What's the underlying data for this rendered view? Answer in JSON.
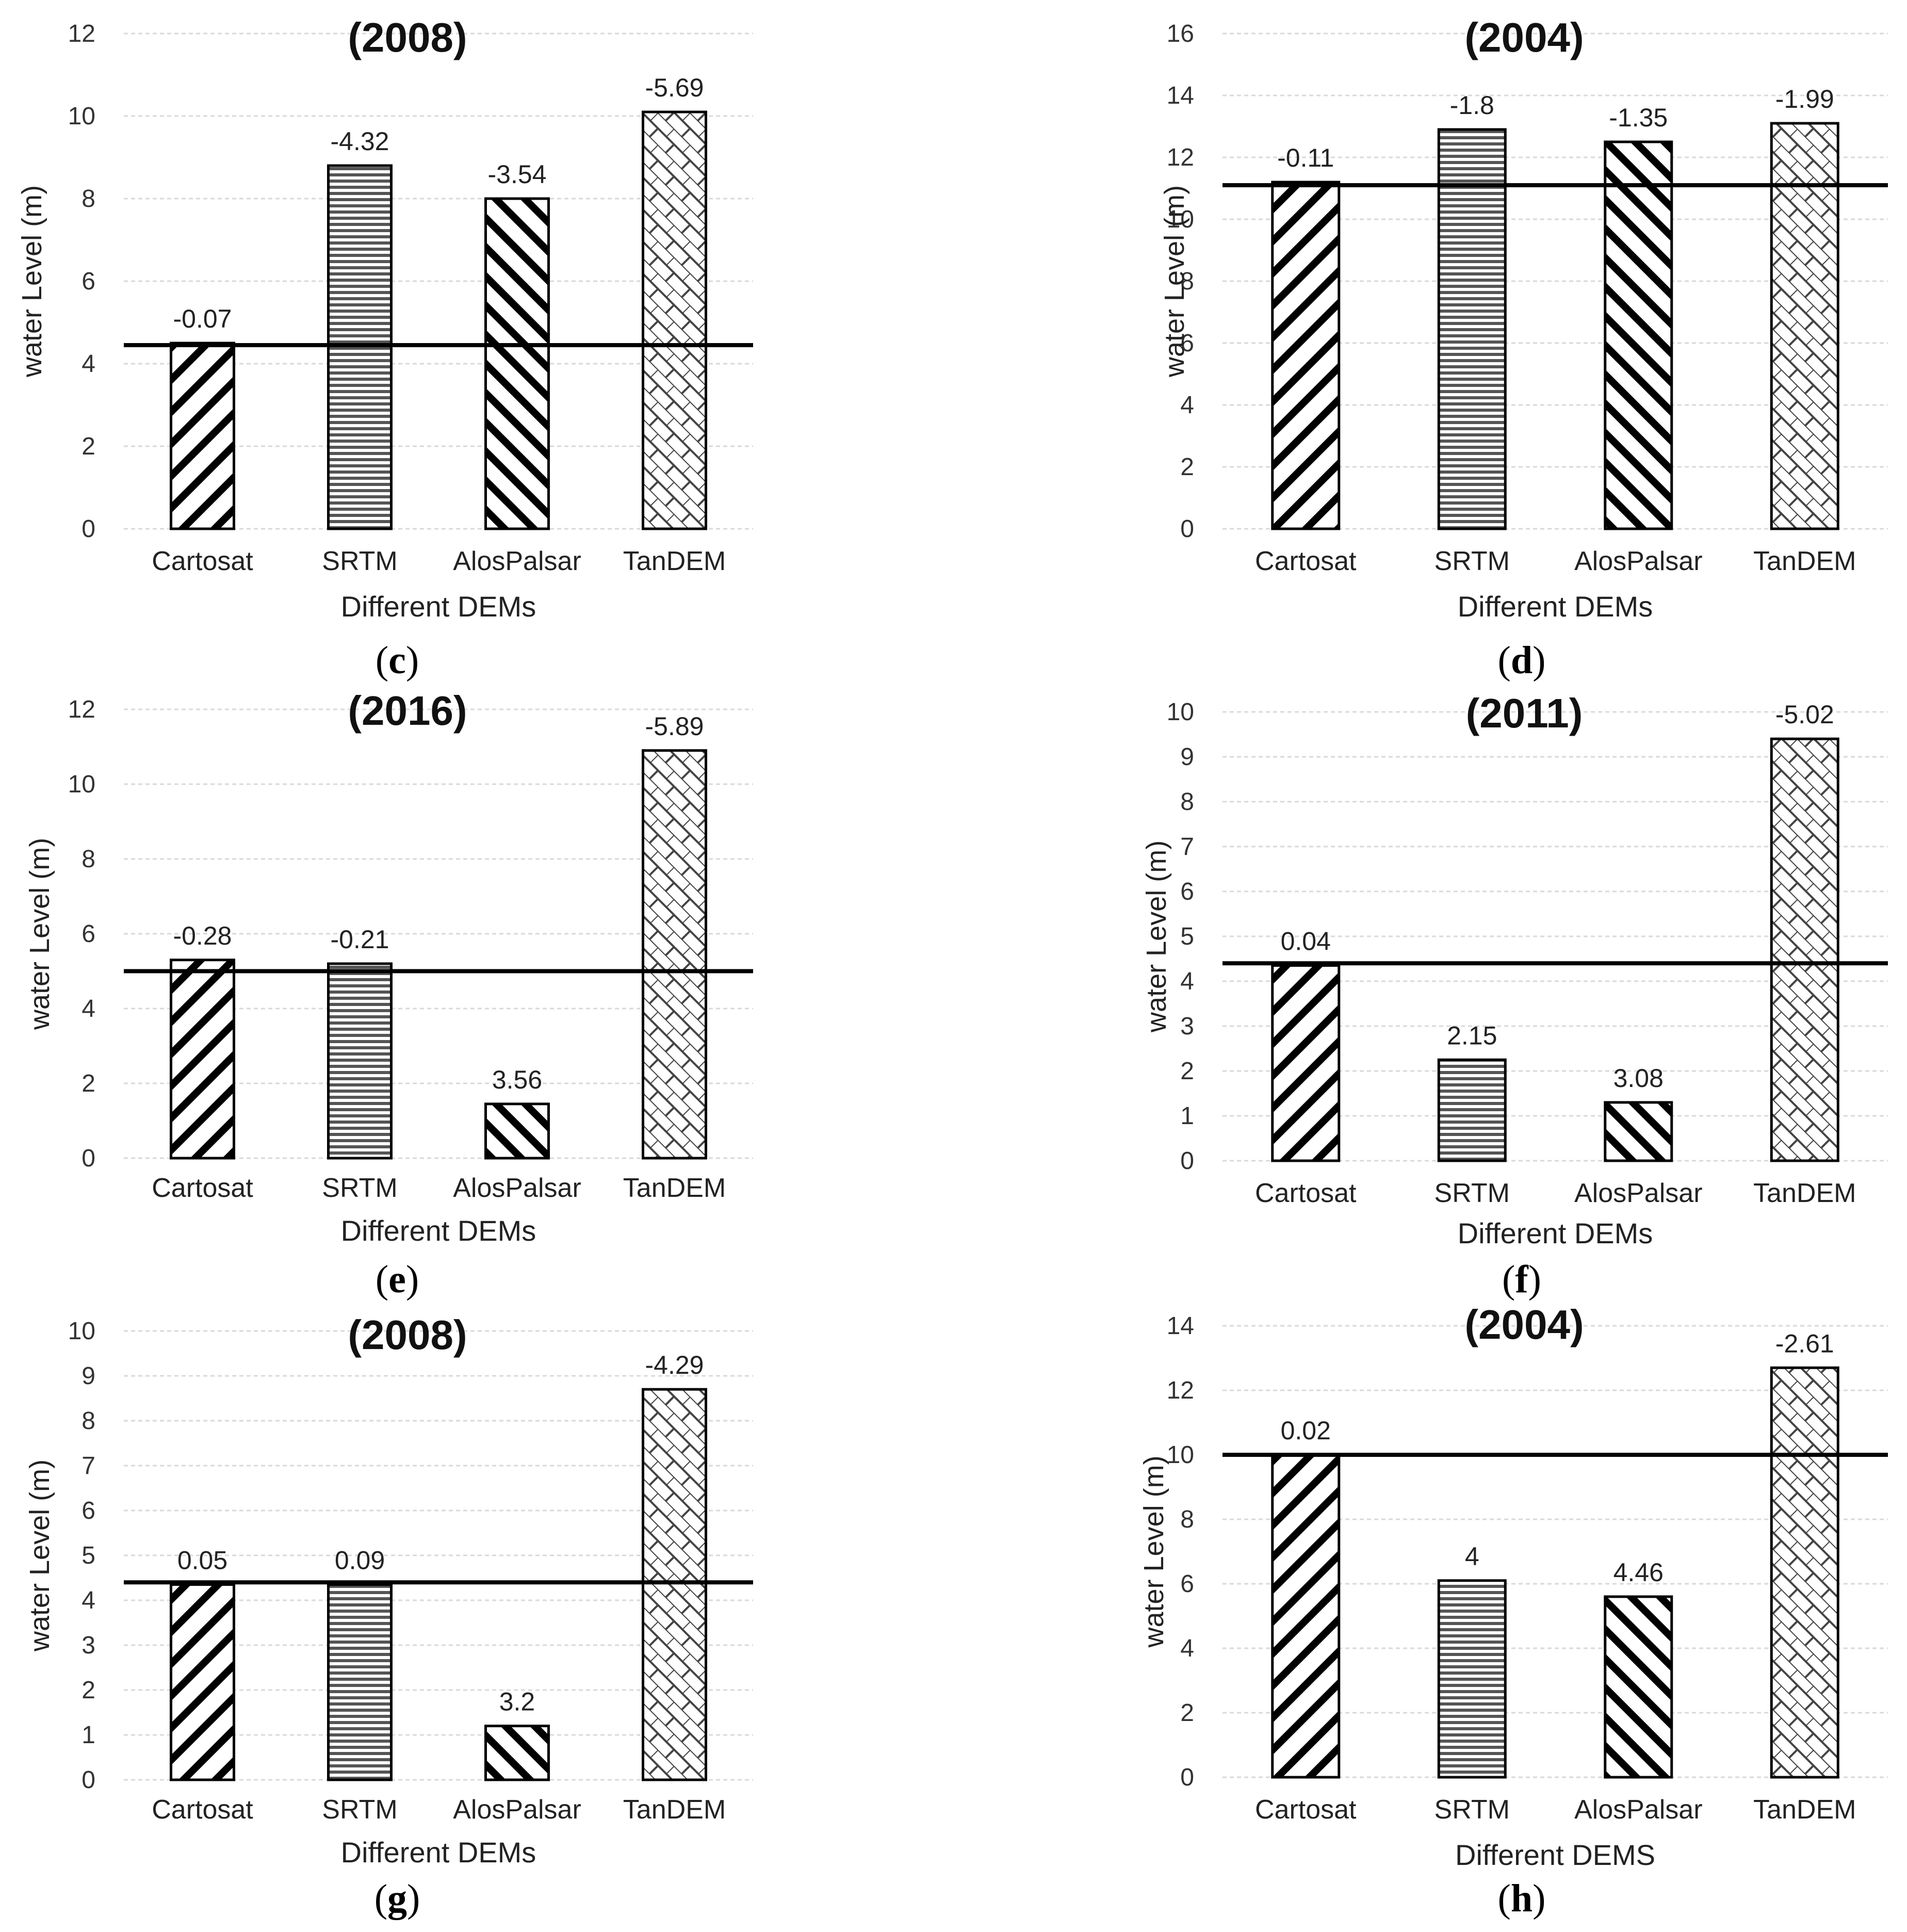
{
  "panel_labels": [
    {
      "open": "(",
      "letter": "c",
      "close": ")"
    },
    {
      "open": "(",
      "letter": "d",
      "close": ")"
    },
    {
      "open": "(",
      "letter": "e",
      "close": ")"
    },
    {
      "open": "(",
      "letter": "f",
      "close": ")"
    },
    {
      "open": "(",
      "letter": "g",
      "close": ")"
    },
    {
      "open": "(",
      "letter": "h",
      "close": ")"
    }
  ],
  "patterns": {
    "Cartosat": "diagonal-back",
    "SRTM": "horizontal-lines",
    "AlosPalsar": "diagonal-forward",
    "TanDEM": "crosshatch-brick"
  },
  "chart_data": [
    {
      "type": "bar",
      "title": "(2008)",
      "xlabel": "Different  DEMs",
      "ylabel": "water Level (m)",
      "categories": [
        "Cartosat",
        "SRTM",
        "AlosPalsar",
        "TanDEM"
      ],
      "values": [
        4.5,
        8.8,
        8.0,
        10.1
      ],
      "data_labels": [
        "-0.07",
        "-4.32",
        "-3.54",
        "-5.69"
      ],
      "reference_line": 4.45,
      "ylim": [
        0,
        12
      ],
      "yticks": [
        0,
        2,
        4,
        6,
        8,
        10,
        12
      ],
      "grid": true
    },
    {
      "type": "bar",
      "title": "(2004)",
      "xlabel": "Different DEMs",
      "ylabel": "water Level (m)",
      "categories": [
        "Cartosat",
        "SRTM",
        "AlosPalsar",
        "TanDEM"
      ],
      "values": [
        11.2,
        12.9,
        12.5,
        13.1
      ],
      "data_labels": [
        "-0.11",
        "-1.8",
        "-1.35",
        "-1.99"
      ],
      "reference_line": 11.1,
      "ylim": [
        0,
        16
      ],
      "yticks": [
        0,
        2,
        4,
        6,
        8,
        10,
        12,
        14,
        16
      ],
      "grid": true
    },
    {
      "type": "bar",
      "title": "(2016)",
      "xlabel": "Different DEMs",
      "ylabel": "water Level (m)",
      "categories": [
        "Cartosat",
        "SRTM",
        "AlosPalsar",
        "TanDEM"
      ],
      "values": [
        5.3,
        5.2,
        1.45,
        10.9
      ],
      "data_labels": [
        "-0.28",
        "-0.21",
        "3.56",
        "-5.89"
      ],
      "reference_line": 5.0,
      "ylim": [
        0,
        12
      ],
      "yticks": [
        0,
        2,
        4,
        6,
        8,
        10,
        12
      ],
      "grid": true
    },
    {
      "type": "bar",
      "title": "(2011)",
      "xlabel": "Different DEMs",
      "ylabel": "water Level (m)",
      "categories": [
        "Cartosat",
        "SRTM",
        "AlosPalsar",
        "TanDEM"
      ],
      "values": [
        4.35,
        2.25,
        1.3,
        9.4
      ],
      "data_labels": [
        "0.04",
        "2.15",
        "3.08",
        "-5.02"
      ],
      "reference_line": 4.4,
      "ylim": [
        0,
        10
      ],
      "yticks": [
        0,
        1,
        2,
        3,
        4,
        5,
        6,
        7,
        8,
        9,
        10
      ],
      "grid": true
    },
    {
      "type": "bar",
      "title": "(2008)",
      "xlabel": "Different DEMs",
      "ylabel": "water Level (m)",
      "categories": [
        "Cartosat",
        "SRTM",
        "AlosPalsar",
        "TanDEM"
      ],
      "values": [
        4.35,
        4.35,
        1.2,
        8.7
      ],
      "data_labels": [
        "0.05",
        "0.09",
        "3.2",
        "-4.29"
      ],
      "reference_line": 4.4,
      "ylim": [
        0,
        10
      ],
      "yticks": [
        0,
        1,
        2,
        3,
        4,
        5,
        6,
        7,
        8,
        9,
        10
      ],
      "grid": true
    },
    {
      "type": "bar",
      "title": "(2004)",
      "xlabel": "Different DEMS",
      "ylabel": "water Level (m)",
      "categories": [
        "Cartosat",
        "SRTM",
        "AlosPalsar",
        "TanDEM"
      ],
      "values": [
        10.0,
        6.1,
        5.6,
        12.7
      ],
      "data_labels": [
        "0.02",
        "4",
        "4.46",
        "-2.61"
      ],
      "reference_line": 10.0,
      "ylim": [
        0,
        14
      ],
      "yticks": [
        0,
        2,
        4,
        6,
        8,
        10,
        12,
        14
      ],
      "grid": true
    }
  ]
}
